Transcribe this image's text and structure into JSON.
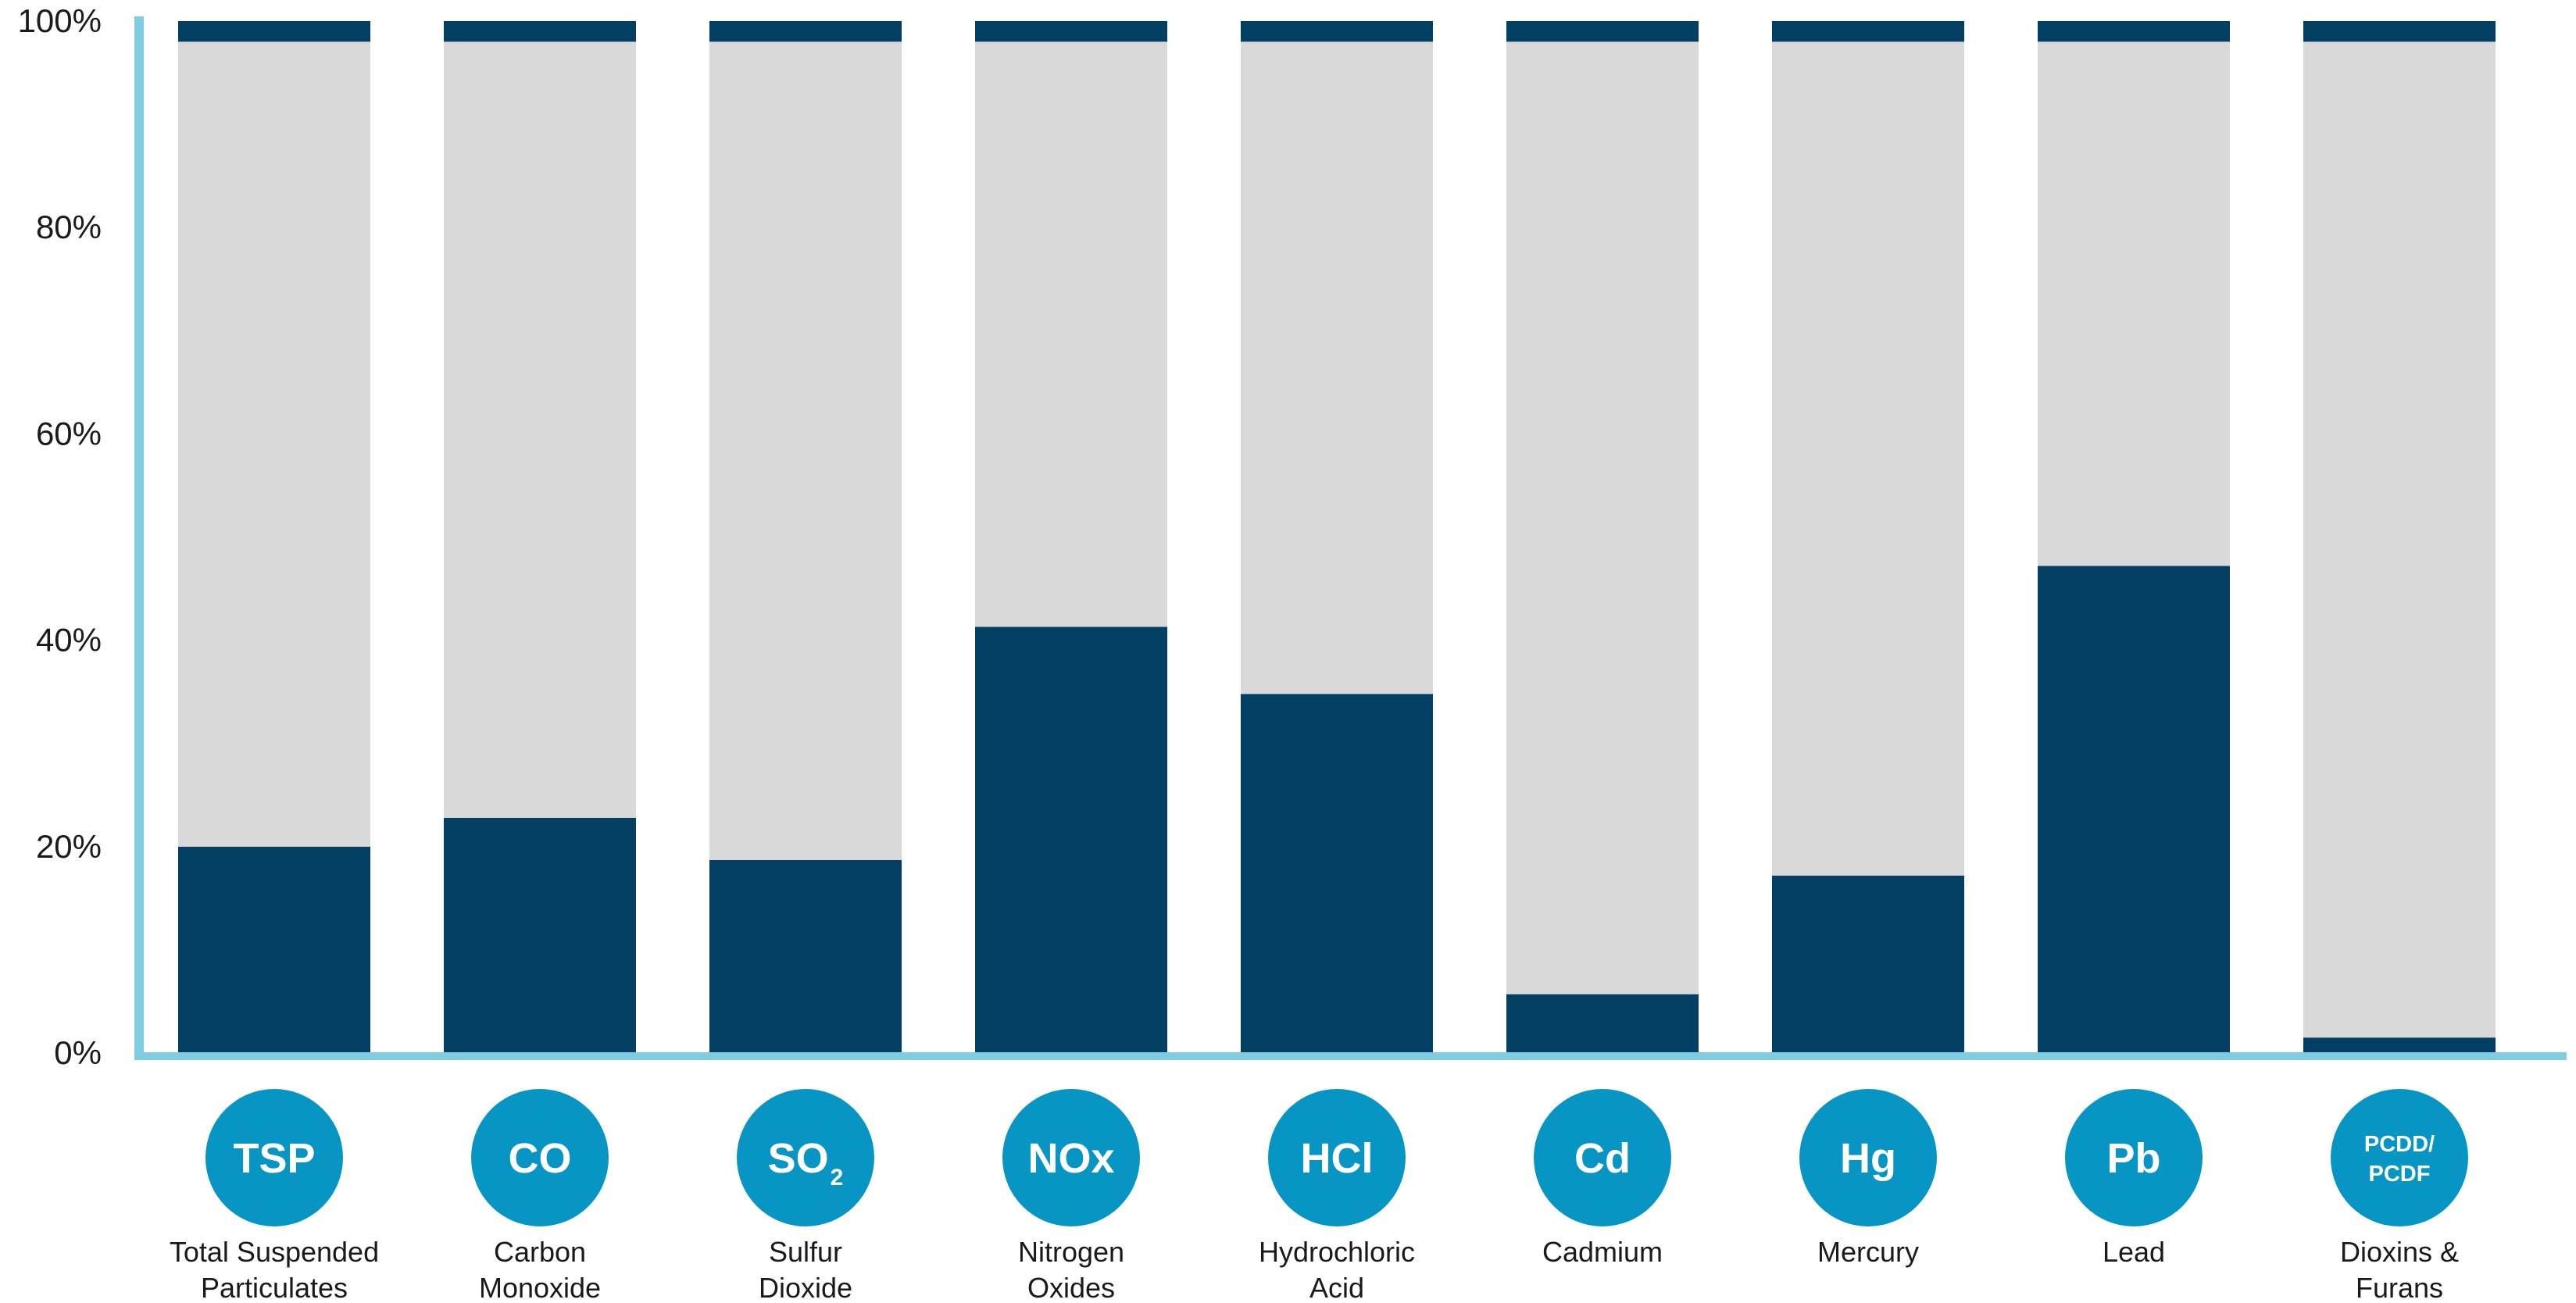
{
  "chart_data": {
    "type": "bar",
    "stacked": true,
    "categories": [
      {
        "symbol": "TSP",
        "label_lines": [
          "Total Suspended",
          "Particulates"
        ]
      },
      {
        "symbol": "CO",
        "label_lines": [
          "Carbon",
          "Monoxide"
        ]
      },
      {
        "symbol": "SO",
        "subscript": "2",
        "label_lines": [
          "Sulfur",
          "Dioxide"
        ]
      },
      {
        "symbol": "NOx",
        "label_lines": [
          "Nitrogen",
          "Oxides"
        ]
      },
      {
        "symbol": "HCl",
        "label_lines": [
          "Hydrochloric",
          "Acid"
        ]
      },
      {
        "symbol": "Cd",
        "label_lines": [
          "Cadmium"
        ]
      },
      {
        "symbol": "Hg",
        "label_lines": [
          "Mercury"
        ]
      },
      {
        "symbol": "Pb",
        "label_lines": [
          "Lead"
        ]
      },
      {
        "symbol_lines": [
          "PCDD/",
          "PCDF"
        ],
        "label_lines": [
          "Dioxins &",
          "Furans"
        ]
      }
    ],
    "series": [
      {
        "values": [
          20,
          22.8,
          18.7,
          41.3,
          34.8,
          5.7,
          17.2,
          47.2,
          1.5
        ],
        "color": "#033f63"
      },
      {
        "values": [
          78,
          75.2,
          79.3,
          56.7,
          63.2,
          92.3,
          80.8,
          50.8,
          96.5
        ],
        "color": "#d9d9d9"
      },
      {
        "values": [
          2,
          2,
          2,
          2,
          2,
          2,
          2,
          2,
          2
        ],
        "color": "#033f63"
      }
    ],
    "yticks": [
      "0%",
      "20%",
      "40%",
      "60%",
      "80%",
      "100%"
    ],
    "ylim": [
      0,
      100
    ],
    "axis_color": "#7fcde3",
    "badge_color": "#0796c4",
    "title": "",
    "xlabel": "",
    "ylabel": "",
    "grid": false,
    "legend": "none"
  }
}
